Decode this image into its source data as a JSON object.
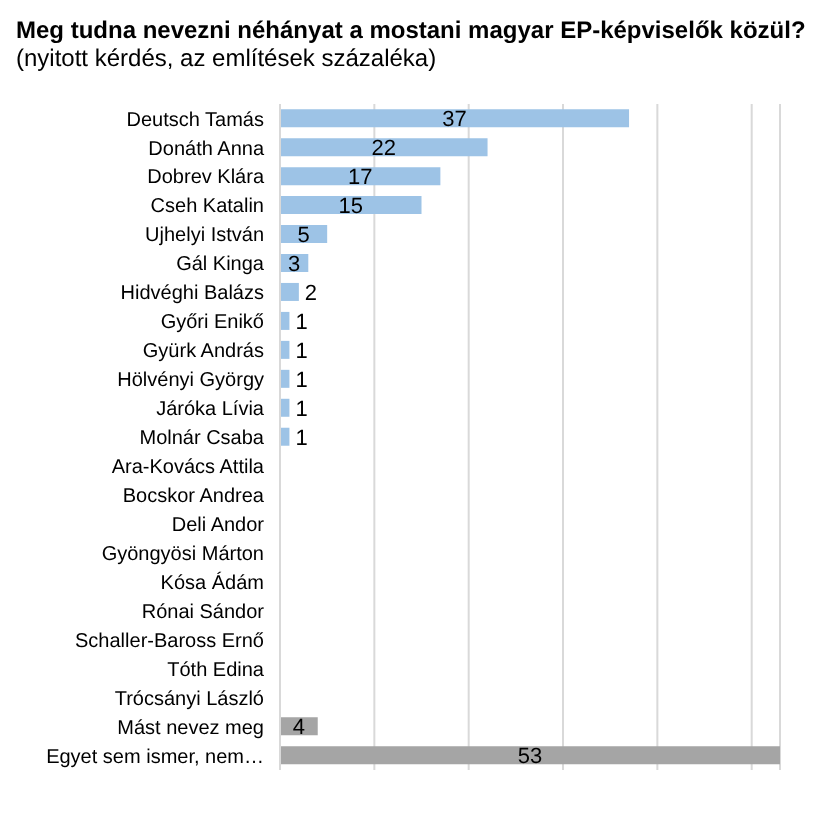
{
  "chart_data": {
    "type": "bar",
    "orientation": "horizontal",
    "title": "Meg tudna nevezni néhányat a mostani magyar EP-képviselők közül?",
    "subtitle": "(nyitott kérdés, az említések százaléka)",
    "categories": [
      "Deutsch Tamás",
      "Donáth Anna",
      "Dobrev Klára",
      "Cseh Katalin",
      "Ujhelyi István",
      "Gál Kinga",
      "Hidvéghi Balázs",
      "Győri Enikő",
      "Gyürk András",
      "Hölvényi György",
      "Járóka Lívia",
      "Molnár Csaba",
      "Ara-Kovács Attila",
      "Bocskor Andrea",
      "Deli Andor",
      "Gyöngyösi Márton",
      "Kósa Ádám",
      "Rónai Sándor",
      "Schaller-Baross Ernő",
      "Tóth Edina",
      "Trócsányi László",
      "Mást nevez meg",
      "Egyet sem ismer, nem…"
    ],
    "values": [
      37,
      22,
      17,
      15,
      5,
      3,
      2,
      1,
      1,
      1,
      1,
      1,
      null,
      null,
      null,
      null,
      null,
      null,
      null,
      null,
      null,
      4,
      53
    ],
    "colors": [
      "#9dc3e6",
      "#9dc3e6",
      "#9dc3e6",
      "#9dc3e6",
      "#9dc3e6",
      "#9dc3e6",
      "#9dc3e6",
      "#9dc3e6",
      "#9dc3e6",
      "#9dc3e6",
      "#9dc3e6",
      "#9dc3e6",
      "#9dc3e6",
      "#9dc3e6",
      "#9dc3e6",
      "#9dc3e6",
      "#9dc3e6",
      "#9dc3e6",
      "#9dc3e6",
      "#9dc3e6",
      "#9dc3e6",
      "#a5a5a5",
      "#a5a5a5"
    ],
    "xticks": [
      {
        "value": 0,
        "label": null
      },
      {
        "value": 10,
        "label": null
      },
      {
        "value": 20,
        "label": null
      },
      {
        "value": 30,
        "label": null
      },
      {
        "value": 40,
        "label": null
      },
      {
        "value": 50,
        "label": null
      }
    ],
    "grid": "x",
    "data_labels": true,
    "tick_labels": "y"
  }
}
